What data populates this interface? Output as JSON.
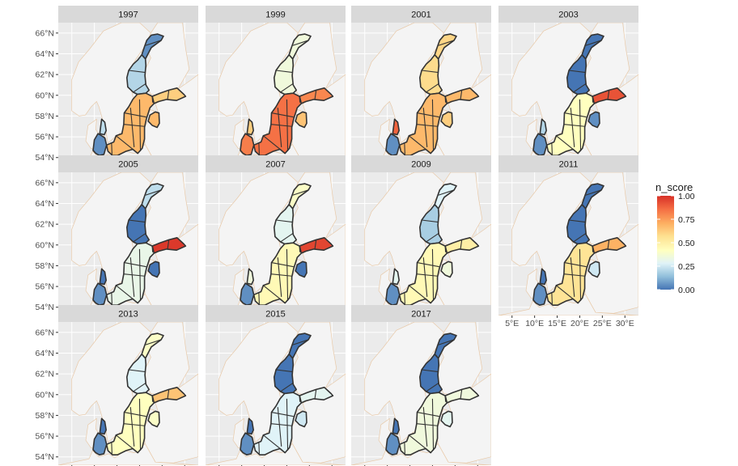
{
  "chart_data": {
    "type": "faceted-choropleth-map",
    "fill_variable": "n_score",
    "facets": [
      {
        "label": "1997",
        "basin_scores": {
          "bothnian_bay": 0.05,
          "bothnian_sea": 0.2,
          "gulf_of_finland": 0.62,
          "baltic_proper": 0.68,
          "gulf_of_riga": 0.68,
          "kattegat": 0.22,
          "belt_sea": 0.05
        }
      },
      {
        "label": "1999",
        "basin_scores": {
          "bothnian_bay": 0.35,
          "bothnian_sea": 0.35,
          "gulf_of_finland": 0.8,
          "baltic_proper": 0.85,
          "gulf_of_riga": 0.65,
          "kattegat": 0.62,
          "belt_sea": 0.82
        }
      },
      {
        "label": "2001",
        "basin_scores": {
          "bothnian_bay": 0.6,
          "bothnian_sea": 0.58,
          "gulf_of_finland": 0.68,
          "baltic_proper": 0.68,
          "gulf_of_riga": 0.62,
          "kattegat": 0.88,
          "belt_sea": 0.05
        }
      },
      {
        "label": "2003",
        "basin_scores": {
          "bothnian_bay": 0.0,
          "bothnian_sea": 0.0,
          "gulf_of_finland": 0.92,
          "baltic_proper": 0.42,
          "gulf_of_riga": 0.05,
          "kattegat": 0.2,
          "belt_sea": 0.05
        }
      },
      {
        "label": "2005",
        "basin_scores": {
          "bothnian_bay": 0.22,
          "bothnian_sea": 0.0,
          "gulf_of_finland": 0.98,
          "baltic_proper": 0.32,
          "gulf_of_riga": 0.0,
          "kattegat": 0.0,
          "belt_sea": 0.05
        }
      },
      {
        "label": "2007",
        "basin_scores": {
          "bothnian_bay": 0.4,
          "bothnian_sea": 0.3,
          "gulf_of_finland": 0.95,
          "baltic_proper": 0.45,
          "gulf_of_riga": 0.0,
          "kattegat": 0.35,
          "belt_sea": 0.05
        }
      },
      {
        "label": "2009",
        "basin_scores": {
          "bothnian_bay": 0.28,
          "bothnian_sea": 0.18,
          "gulf_of_finland": 0.5,
          "baltic_proper": 0.45,
          "gulf_of_riga": 0.35,
          "kattegat": 0.3,
          "belt_sea": 0.05
        }
      },
      {
        "label": "2011",
        "basin_scores": {
          "bothnian_bay": 0.0,
          "bothnian_sea": 0.0,
          "gulf_of_finland": 0.7,
          "baltic_proper": 0.55,
          "gulf_of_riga": 0.25,
          "kattegat": 0.0,
          "belt_sea": 0.05
        }
      },
      {
        "label": "2013",
        "basin_scores": {
          "bothnian_bay": 0.4,
          "bothnian_sea": 0.28,
          "gulf_of_finland": 0.65,
          "baltic_proper": 0.42,
          "gulf_of_riga": 0.4,
          "kattegat": 0.0,
          "belt_sea": 0.05
        }
      },
      {
        "label": "2015",
        "basin_scores": {
          "bothnian_bay": 0.0,
          "bothnian_sea": 0.0,
          "gulf_of_finland": 0.3,
          "baltic_proper": 0.28,
          "gulf_of_riga": 0.25,
          "kattegat": 0.0,
          "belt_sea": 0.05
        }
      },
      {
        "label": "2017",
        "basin_scores": {
          "bothnian_bay": 0.0,
          "bothnian_sea": 0.0,
          "gulf_of_finland": 0.35,
          "baltic_proper": 0.35,
          "gulf_of_riga": 0.3,
          "kattegat": 0.0,
          "belt_sea": 0.05
        }
      }
    ],
    "x_axis": {
      "ticks": [
        "5°E",
        "10°E",
        "15°E",
        "20°E",
        "25°E",
        "30°E"
      ],
      "lon_values": [
        5,
        10,
        15,
        20,
        25,
        30
      ],
      "range": [
        2,
        33
      ]
    },
    "y_axis": {
      "ticks": [
        "54°N",
        "56°N",
        "58°N",
        "60°N",
        "62°N",
        "64°N",
        "66°N"
      ],
      "lat_values": [
        54,
        56,
        58,
        60,
        62,
        64,
        66
      ],
      "range": [
        53.2,
        67
      ]
    },
    "legend": {
      "title": "n_score",
      "breaks": [
        "0.00",
        "0.25",
        "0.50",
        "0.75",
        "1.00"
      ],
      "break_values": [
        0,
        0.25,
        0.5,
        0.75,
        1
      ],
      "limits": [
        0,
        1
      ],
      "placement": "right"
    },
    "colors": {
      "scale": [
        "#4575b4",
        "#91bfdb",
        "#e0f3f8",
        "#ffffbf",
        "#fee090",
        "#fdae61",
        "#f46d43",
        "#d73027"
      ],
      "scale_stops": [
        0,
        0.14,
        0.28,
        0.42,
        0.57,
        0.71,
        0.86,
        1
      ],
      "panel_background": "#ebebeb",
      "strip_background": "#d9d9d9",
      "land_fill": "#f4f4f4",
      "land_border": "#e8c9a8",
      "basin_border": "#333333"
    }
  }
}
